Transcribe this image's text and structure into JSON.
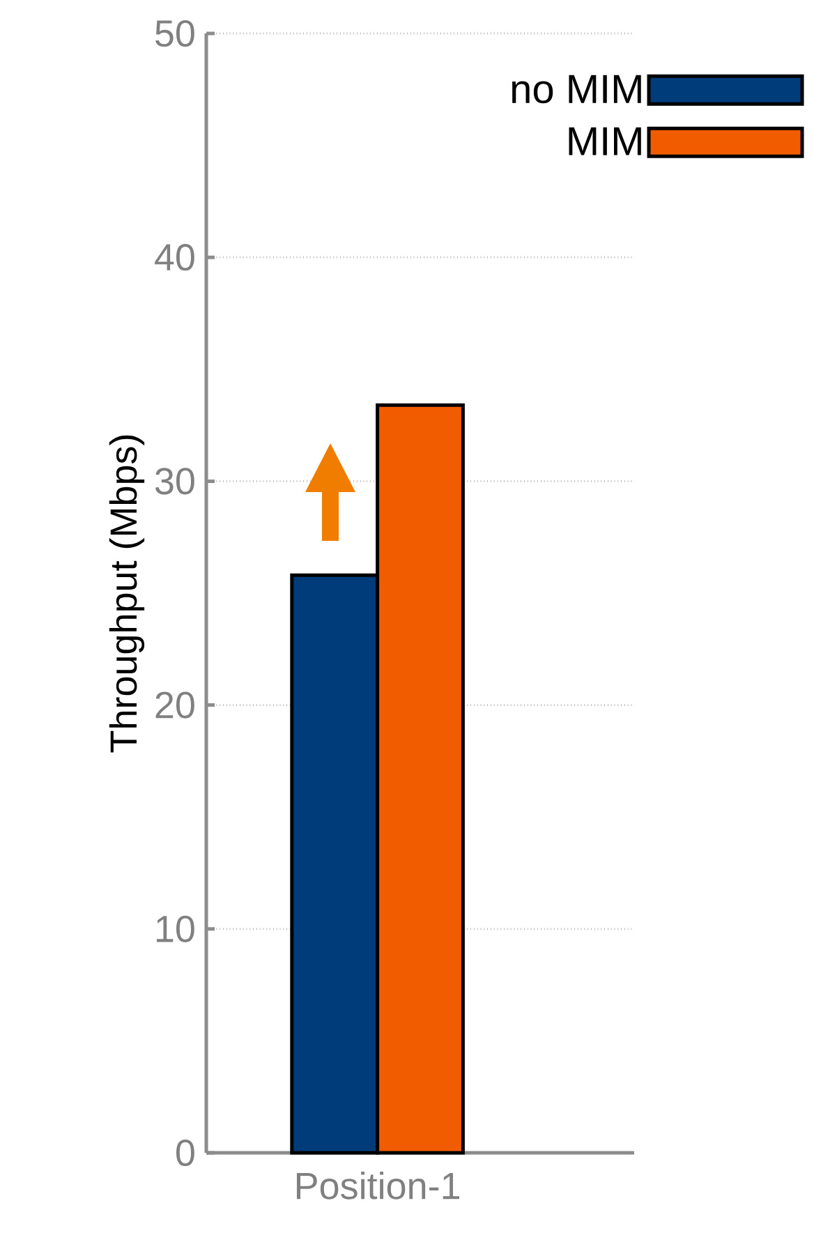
{
  "chart_data": {
    "type": "bar",
    "ylabel": "Throughput (Mbps)",
    "categories": [
      "Position-1"
    ],
    "series": [
      {
        "name": "no MIM",
        "color": "#003c7a",
        "values": [
          25.8
        ]
      },
      {
        "name": "MIM",
        "color": "#f25c00",
        "values": [
          33.4
        ]
      }
    ],
    "ylim": [
      0,
      50
    ],
    "yticks": [
      0,
      10,
      20,
      30,
      40,
      50
    ],
    "grid": "y",
    "legend": "top right"
  }
}
